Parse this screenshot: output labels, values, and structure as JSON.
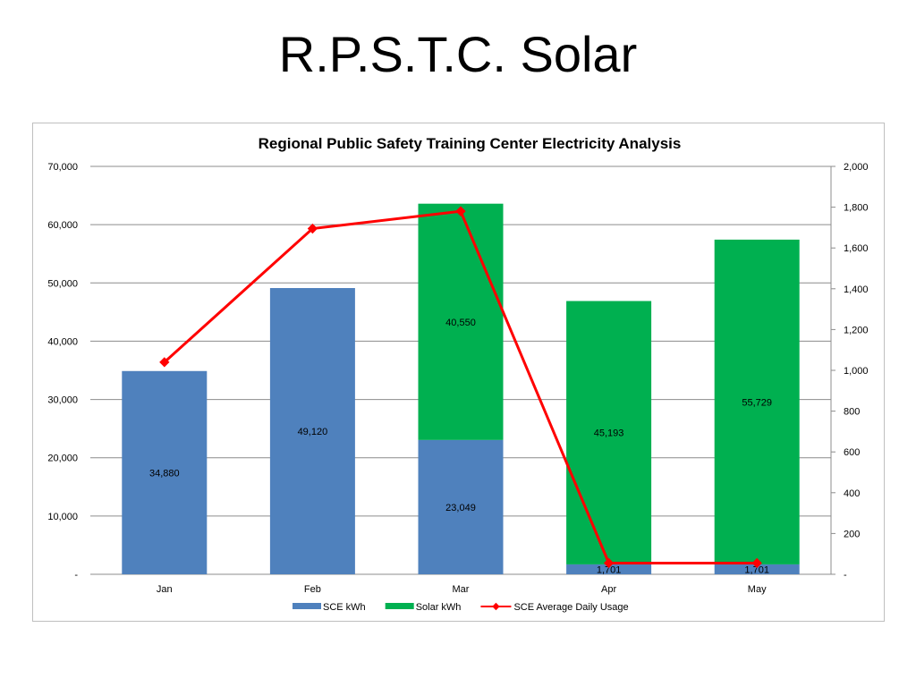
{
  "slide": {
    "title": "R.P.S.T.C. Solar"
  },
  "chart_data": {
    "type": "bar",
    "stacked": true,
    "title": "Regional Public Safety Training Center Electricity Analysis",
    "categories": [
      "Jan",
      "Feb",
      "Mar",
      "Apr",
      "May"
    ],
    "series": [
      {
        "name": "SCE kWh",
        "kind": "bar",
        "axis": "left",
        "color": "#4f81bd",
        "values": [
          34880,
          49120,
          23049,
          1701,
          1701
        ],
        "labels": [
          "34,880",
          "49,120",
          "23,049",
          "1,701",
          "1,701"
        ]
      },
      {
        "name": "Solar kWh",
        "kind": "bar",
        "axis": "left",
        "color": "#00b050",
        "values": [
          0,
          0,
          40550,
          45193,
          55729
        ],
        "labels": [
          "",
          "",
          "40,550",
          "45,193",
          "55,729"
        ]
      },
      {
        "name": "SCE Average Daily Usage",
        "kind": "line",
        "axis": "right",
        "color": "#ff0000",
        "values": [
          1040,
          1695,
          1780,
          55,
          55
        ]
      }
    ],
    "y_left": {
      "min": 0,
      "max": 70000,
      "ticks": [
        0,
        10000,
        20000,
        30000,
        40000,
        50000,
        60000,
        70000
      ],
      "tick_labels": [
        "-",
        "10,000",
        "20,000",
        "30,000",
        "40,000",
        "50,000",
        "60,000",
        "70,000"
      ]
    },
    "y_right": {
      "min": 0,
      "max": 2000,
      "ticks": [
        0,
        200,
        400,
        600,
        800,
        1000,
        1200,
        1400,
        1600,
        1800,
        2000
      ],
      "tick_labels": [
        "-",
        "200",
        "400",
        "600",
        "800",
        "1,000",
        "1,200",
        "1,400",
        "1,600",
        "1,800",
        "2,000"
      ]
    },
    "grid": true,
    "legend": "bottom"
  }
}
